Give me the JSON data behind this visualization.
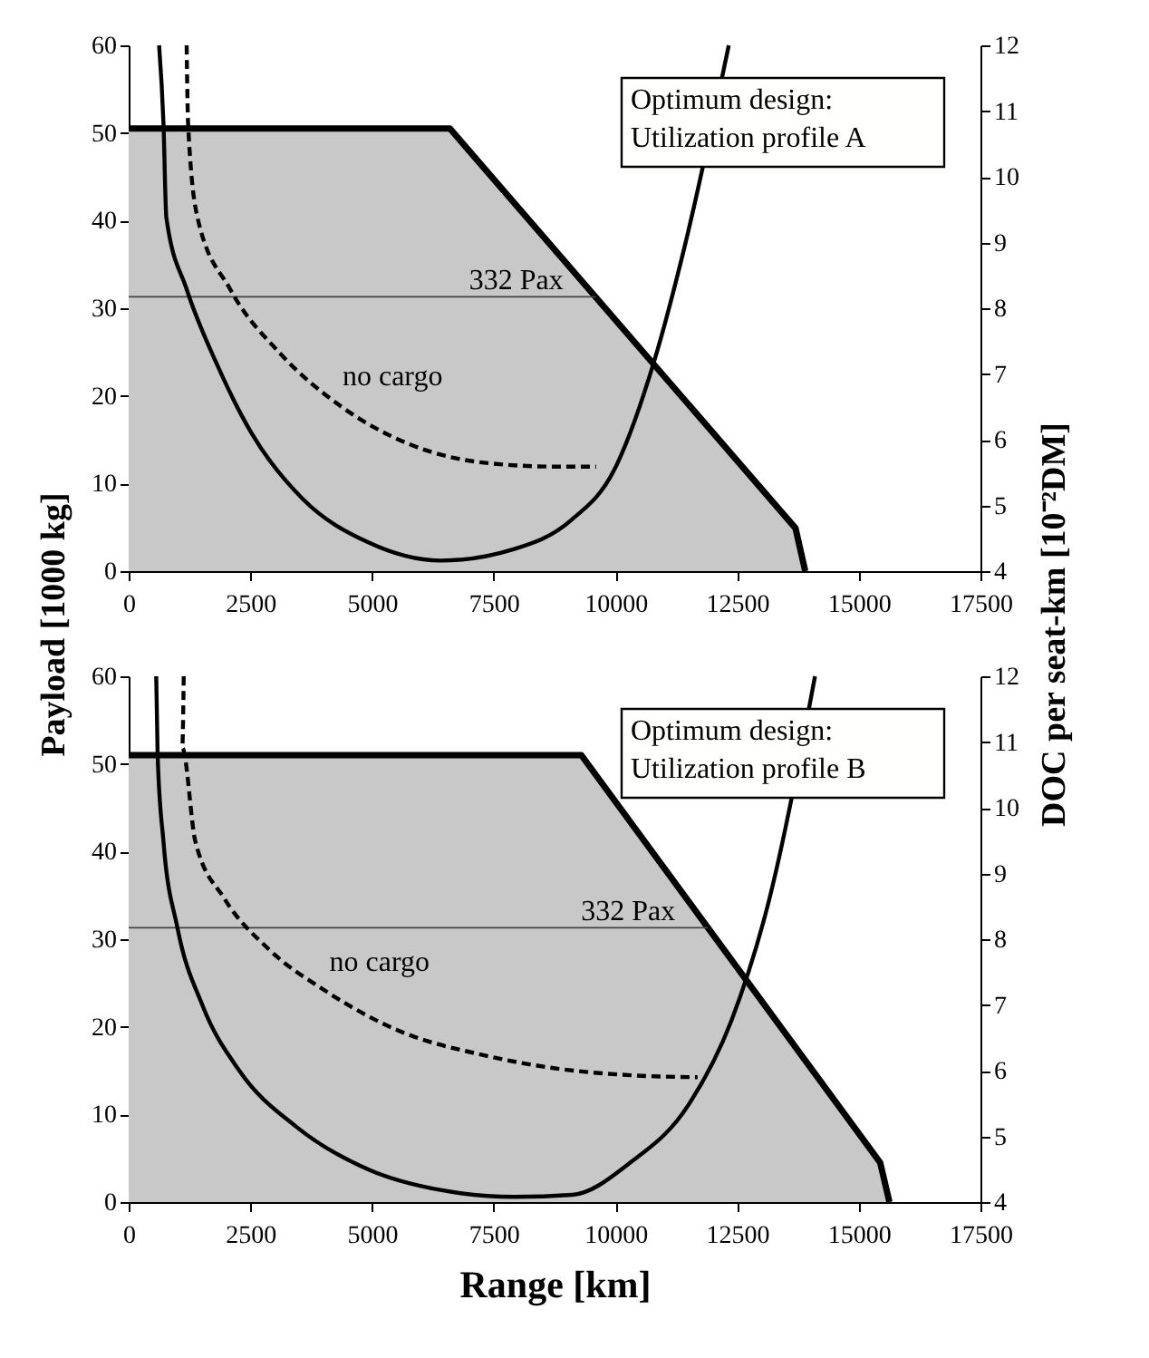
{
  "chart_data": [
    {
      "type": "area",
      "xlim": [
        0,
        17500
      ],
      "xticks": [
        0,
        2500,
        5000,
        7500,
        10000,
        12500,
        15000,
        17500
      ],
      "ylim": [
        0,
        60
      ],
      "yticks": [
        0,
        10,
        20,
        30,
        40,
        50,
        60
      ],
      "y2lim": [
        4,
        12
      ],
      "y2ticks": [
        4,
        5,
        6,
        7,
        8,
        9,
        10,
        11,
        12
      ],
      "ylabel": "Payload [1000 kg]",
      "y2label": "DOC per seat-km [10⁻²DM]",
      "annotations": [
        "Optimum design:\nUtilization profile A"
      ],
      "marker": "none",
      "series": [
        {
          "color": "#c8c8c8",
          "x": [
            0,
            6600,
            13700,
            13900
          ],
          "values": [
            50.5,
            50.5,
            4.9,
            0
          ]
        },
        {
          "type": "line",
          "name": "332 Pax",
          "color": "#444444",
          "x": [
            0,
            9600
          ],
          "values": [
            31.3,
            31.3
          ]
        },
        {
          "type": "line",
          "name": "no cargo",
          "axis": "y2",
          "line_style": "dashed",
          "color": "#000000",
          "x": [
            1191,
            1221,
            1414,
            2085,
            3127,
            4318,
            5807,
            7296,
            8785,
            9604
          ],
          "values": [
            12,
            10.81,
            9.38,
            8.29,
            7.3,
            6.53,
            5.92,
            5.65,
            5.59,
            5.59
          ]
        },
        {
          "type": "line",
          "axis": "y2",
          "color": "#000000",
          "x": [
            625,
            715,
            774,
            1191,
            1787,
            2531,
            3574,
            4914,
            6403,
            7892,
            9083,
            9976,
            10795,
            11390,
            11837,
            12329
          ],
          "values": [
            12,
            10.81,
            9.38,
            8.29,
            7.19,
            6.09,
            5.1,
            4.44,
            4.16,
            4.33,
            4.77,
            5.54,
            7.19,
            8.84,
            null,
            12
          ]
        }
      ]
    },
    {
      "type": "area",
      "xlim": [
        0,
        17500
      ],
      "xticks": [
        0,
        2500,
        5000,
        7500,
        10000,
        12500,
        15000,
        17500
      ],
      "ylim": [
        0,
        60
      ],
      "yticks": [
        0,
        10,
        20,
        30,
        40,
        50,
        60
      ],
      "y2lim": [
        4,
        12
      ],
      "y2ticks": [
        4,
        5,
        6,
        7,
        8,
        9,
        10,
        11,
        12
      ],
      "xlabel": "Range [km]",
      "annotations": [
        "Optimum design:\nUtilization profile B"
      ],
      "marker": "none",
      "series": [
        {
          "color": "#c8c8c8",
          "x": [
            0,
            9300,
            15440,
            15630
          ],
          "values": [
            51,
            51,
            4.5,
            0
          ]
        },
        {
          "type": "line",
          "name": "332 Pax",
          "color": "#444444",
          "x": [
            0,
            11900
          ],
          "values": [
            31.3,
            31.3
          ]
        },
        {
          "type": "line",
          "name": "no cargo",
          "axis": "y2",
          "line_style": "dashed",
          "color": "#000000",
          "x": [
            1131,
            1101,
            1369,
            1965,
            2859,
            4050,
            5539,
            7325,
            8814,
            10303,
            11688
          ],
          "values": [
            12,
            10.91,
            9.49,
            8.62,
            7.86,
            7.21,
            6.61,
            6.23,
            6.03,
            5.93,
            5.9
          ]
        },
        {
          "type": "line",
          "axis": "y2",
          "color": "#000000",
          "x": [
            566,
            595,
            714,
            997,
            1518,
            2263,
            3455,
            4943,
            6432,
            7920,
            9112,
            10303,
            11494,
            12388,
            13132,
            13728,
            14101
          ],
          "values": [
            12,
            10.8,
            9.49,
            8.19,
            6.99,
            6.01,
            5.14,
            4.49,
            4.18,
            4.08,
            4.11,
            4.6,
            5.47,
            6.77,
            8.52,
            null,
            12
          ]
        }
      ]
    }
  ]
}
